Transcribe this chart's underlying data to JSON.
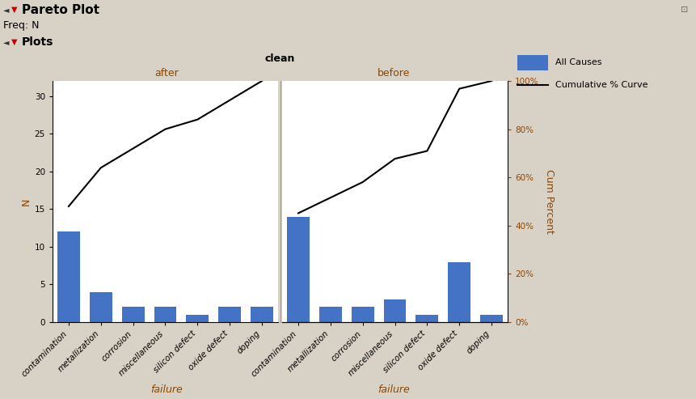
{
  "title_main": "Pareto Plot",
  "freq_label": "Freq: N",
  "plots_label": "Plots",
  "panel_title": "clean",
  "after_label": "after",
  "before_label": "before",
  "xlabel": "failure",
  "ylabel_left": "N",
  "ylabel_right": "Cum Percent",
  "after_categories": [
    "contamination",
    "metallization",
    "corrosion",
    "miscellaneous",
    "silicon defect",
    "oxide defect",
    "doping"
  ],
  "before_categories": [
    "contamination",
    "metallization",
    "corrosion",
    "miscellaneous",
    "silicon defect",
    "oxide defect",
    "doping"
  ],
  "after_values": [
    12,
    4,
    2,
    2,
    1,
    2,
    2
  ],
  "before_values": [
    14,
    2,
    2,
    3,
    1,
    8,
    1
  ],
  "after_cumulative": [
    48.0,
    64.0,
    72.0,
    80.0,
    84.0,
    92.0,
    100.0
  ],
  "before_cumulative": [
    45.16,
    51.61,
    58.06,
    67.74,
    70.97,
    96.77,
    100.0
  ],
  "bar_color": "#4472C4",
  "line_color": "#000000",
  "bg_plot": "#FFFFFF",
  "bg_header": "#D4CEBC",
  "bg_subheader": "#C8C2AD",
  "bg_outer": "#D8D2C6",
  "ylim_left": [
    0,
    32
  ],
  "yticks_left": [
    0,
    5,
    10,
    15,
    20,
    25,
    30
  ],
  "yticks_right_pct": [
    0,
    20,
    40,
    60,
    80,
    100
  ],
  "legend_bar_label": "All Causes",
  "legend_line_label": "Cumulative % Curve",
  "header_fontsize": 9,
  "tick_fontsize": 7.5,
  "axis_label_fontsize": 9,
  "window_title_fontsize": 11,
  "after_label_color": "#8B4500",
  "before_label_color": "#8B4500",
  "right_tick_color": "#8B4500",
  "ylabel_color": "#8B4500",
  "xlabel_color": "#8B4500"
}
